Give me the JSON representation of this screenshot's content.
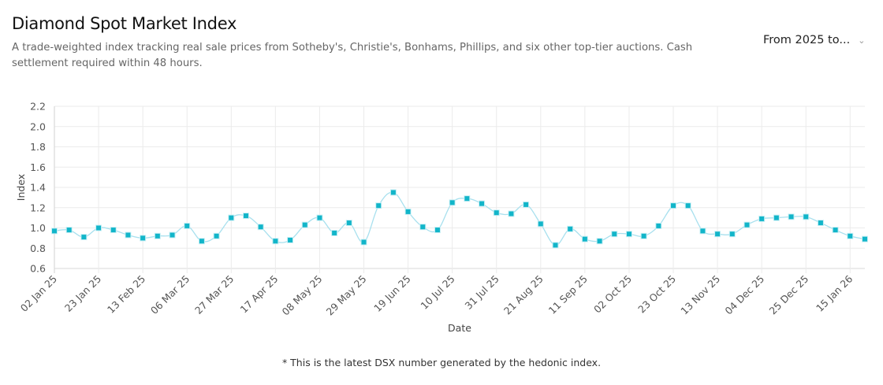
{
  "header": {
    "title": "Diamond Spot Market Index",
    "subtitle": "A trade-weighted index tracking real sale prices from Sotheby's, Christie's, Bonhams, Phillips, and six other top-tier auctions. Cash settlement required within 48 hours.",
    "range_select": "From 2025 to...",
    "range_icon": "chevron-down-icon"
  },
  "footnote": "* This is the latest DSX number generated by the hedonic index.",
  "chart_data": {
    "type": "line",
    "xlabel": "Date",
    "ylabel": "Index",
    "ylim": [
      0.6,
      2.2
    ],
    "yticks": [
      "0.6",
      "0.8",
      "1.0",
      "1.2",
      "1.4",
      "1.6",
      "1.8",
      "2.0",
      "2.2"
    ],
    "xticks": [
      "02 Jan 25",
      "23 Jan 25",
      "13 Feb 25",
      "06 Mar 25",
      "27 Mar 25",
      "17 Apr 25",
      "08 May 25",
      "29 May 25",
      "19 Jun 25",
      "10 Jul 25",
      "31 Jul 25",
      "21 Aug 25",
      "11 Sep 25",
      "02 Oct 25",
      "23 Oct 25",
      "13 Nov 25",
      "04 Dec 25",
      "25 Dec 25",
      "15 Jan 26"
    ],
    "grid": true,
    "series_color": "#12b5c9",
    "line_color": "#a8e0ee",
    "x": [
      "2025-01-02",
      "2025-01-09",
      "2025-01-16",
      "2025-01-23",
      "2025-01-30",
      "2025-02-06",
      "2025-02-13",
      "2025-02-20",
      "2025-02-27",
      "2025-03-06",
      "2025-03-13",
      "2025-03-20",
      "2025-03-27",
      "2025-04-03",
      "2025-04-10",
      "2025-04-17",
      "2025-04-24",
      "2025-05-01",
      "2025-05-08",
      "2025-05-15",
      "2025-05-22",
      "2025-05-29",
      "2025-06-05",
      "2025-06-12",
      "2025-06-19",
      "2025-06-26",
      "2025-07-03",
      "2025-07-10",
      "2025-07-17",
      "2025-07-24",
      "2025-07-31",
      "2025-08-07",
      "2025-08-14",
      "2025-08-21",
      "2025-08-28",
      "2025-09-04",
      "2025-09-11",
      "2025-09-18",
      "2025-09-25",
      "2025-10-02",
      "2025-10-09",
      "2025-10-16",
      "2025-10-23",
      "2025-10-30",
      "2025-11-06",
      "2025-11-13",
      "2025-11-20",
      "2025-11-27",
      "2025-12-04",
      "2025-12-11",
      "2025-12-18",
      "2025-12-25",
      "2026-01-01",
      "2026-01-08",
      "2026-01-15",
      "2026-01-22"
    ],
    "values": [
      0.97,
      0.98,
      0.91,
      1.0,
      0.98,
      0.93,
      0.9,
      0.92,
      0.93,
      1.02,
      0.87,
      0.92,
      1.1,
      1.12,
      1.01,
      0.87,
      0.88,
      1.03,
      1.1,
      0.95,
      1.05,
      0.86,
      1.22,
      1.35,
      1.16,
      1.01,
      0.98,
      1.25,
      1.29,
      1.24,
      1.15,
      1.14,
      1.23,
      1.04,
      0.83,
      0.99,
      0.89,
      0.87,
      0.94,
      0.94,
      0.92,
      1.02,
      1.22,
      1.22,
      0.97,
      0.94,
      0.94,
      1.03,
      1.09,
      1.1,
      1.11,
      1.11,
      1.05,
      0.98,
      0.92,
      0.89
    ]
  }
}
